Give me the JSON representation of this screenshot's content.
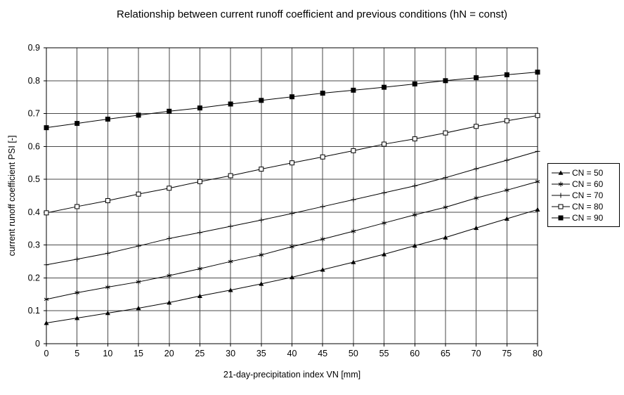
{
  "chart_data": {
    "type": "line",
    "title": "Relationship between current runoff coefficient and previous conditions (hN = const)",
    "xlabel": "21-day-precipitation index VN [mm]",
    "ylabel": "current runoff coefficient PSI [-]",
    "x": [
      0,
      5,
      10,
      15,
      20,
      25,
      30,
      35,
      40,
      45,
      50,
      55,
      60,
      65,
      70,
      75,
      80
    ],
    "xlim": [
      0,
      80
    ],
    "ylim": [
      0,
      0.9
    ],
    "ytick_step": 0.1,
    "grid": true,
    "legend_position": "right",
    "line_color": "#000000",
    "grid_color": "#4a4a4a",
    "series": [
      {
        "name": "CN = 50",
        "marker": "triangle-filled",
        "values": [
          0.063,
          0.078,
          0.093,
          0.108,
          0.125,
          0.145,
          0.163,
          0.182,
          0.202,
          0.225,
          0.248,
          0.272,
          0.298,
          0.323,
          0.352,
          0.38,
          0.408
        ]
      },
      {
        "name": "CN = 60",
        "marker": "asterisk",
        "values": [
          0.135,
          0.155,
          0.172,
          0.188,
          0.207,
          0.228,
          0.25,
          0.27,
          0.295,
          0.318,
          0.342,
          0.367,
          0.392,
          0.415,
          0.443,
          0.467,
          0.493
        ]
      },
      {
        "name": "CN = 70",
        "marker": "plus",
        "values": [
          0.24,
          0.257,
          0.275,
          0.297,
          0.32,
          0.338,
          0.357,
          0.376,
          0.396,
          0.417,
          0.438,
          0.459,
          0.48,
          0.505,
          0.532,
          0.558,
          0.585
        ]
      },
      {
        "name": "CN = 80",
        "marker": "square-open",
        "values": [
          0.398,
          0.417,
          0.435,
          0.455,
          0.473,
          0.493,
          0.511,
          0.531,
          0.55,
          0.568,
          0.587,
          0.607,
          0.623,
          0.641,
          0.661,
          0.678,
          0.694
        ]
      },
      {
        "name": "CN = 90",
        "marker": "square-filled",
        "values": [
          0.657,
          0.67,
          0.683,
          0.695,
          0.707,
          0.717,
          0.729,
          0.74,
          0.751,
          0.762,
          0.771,
          0.78,
          0.79,
          0.8,
          0.809,
          0.818,
          0.826
        ]
      }
    ]
  }
}
